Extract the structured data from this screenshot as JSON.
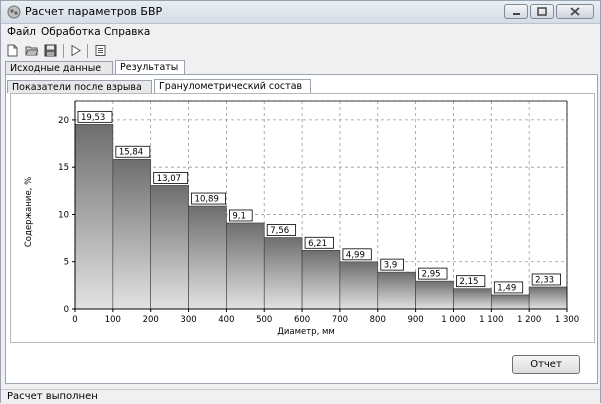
{
  "window": {
    "title": "Расчет параметров БВР",
    "icon": "app-icon",
    "controls": [
      "minimize-icon",
      "maximize-icon",
      "close-icon"
    ]
  },
  "menu": [
    "Файл",
    "Обработка",
    "Справка"
  ],
  "toolbar": [
    "new-file-icon",
    "open-folder-icon",
    "save-icon",
    "run-icon",
    "list-icon"
  ],
  "main_tabs": [
    {
      "label": "Исходные данные",
      "active": false
    },
    {
      "label": "Результаты",
      "active": true
    }
  ],
  "sub_tabs": [
    {
      "label": "Показатели после взрыва",
      "active": false
    },
    {
      "label": "Гранулометрический состав",
      "active": true
    }
  ],
  "report_button": "Отчет",
  "status": "Расчет выполнен",
  "chart_data": {
    "type": "bar",
    "x_edges": [
      0,
      100,
      200,
      300,
      400,
      500,
      600,
      700,
      800,
      900,
      1000,
      1100,
      1200,
      1300
    ],
    "values": [
      19.53,
      15.84,
      13.07,
      10.89,
      9.1,
      7.56,
      6.21,
      4.99,
      3.9,
      2.95,
      2.15,
      1.49,
      2.33
    ],
    "labels": [
      "19,53",
      "15,84",
      "13,07",
      "10,89",
      "9,1",
      "7,56",
      "6,21",
      "4,99",
      "3,9",
      "2,95",
      "2,15",
      "1,49",
      "2,33"
    ],
    "xticks": [
      "0",
      "100",
      "200",
      "300",
      "400",
      "500",
      "600",
      "700",
      "800",
      "900",
      "1 000",
      "1 100",
      "1 200",
      "1 300"
    ],
    "yticks": [
      "0",
      "5",
      "10",
      "15",
      "20"
    ],
    "xlabel": "Диаметр, мм",
    "ylabel": "Содержание, %",
    "xlim": [
      0,
      1300
    ],
    "ylim": [
      0,
      22
    ],
    "grid": true,
    "bar_gradient": [
      "#6e6e6e",
      "#e2e2e2"
    ]
  }
}
